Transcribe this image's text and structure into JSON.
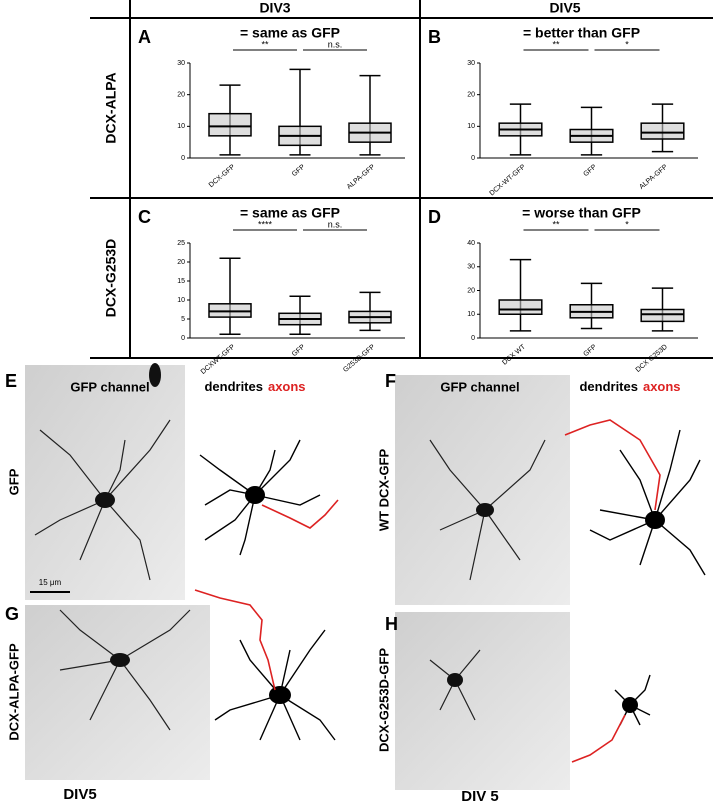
{
  "header": {
    "col1": "DIV3",
    "col2": "DIV5",
    "row1": "DCX-ALPA",
    "row2": "DCX-G253D"
  },
  "panels": [
    {
      "letter": "A",
      "title": "= same as GFP",
      "chart": {
        "type": "box",
        "categories": [
          "DCX-GFP",
          "GFP",
          "ALPA-GFP"
        ],
        "boxes": [
          {
            "min": 1,
            "q1": 7,
            "median": 10,
            "q3": 14,
            "max": 23
          },
          {
            "min": 1,
            "q1": 4,
            "median": 7,
            "q3": 10,
            "max": 28
          },
          {
            "min": 1,
            "q1": 5,
            "median": 8,
            "q3": 11,
            "max": 26
          }
        ],
        "significance": [
          "**",
          "n.s."
        ],
        "ylim": [
          0,
          30
        ],
        "yticks": [
          0,
          10,
          20,
          30
        ]
      }
    },
    {
      "letter": "B",
      "title": "= better than GFP",
      "chart": {
        "type": "box",
        "categories": [
          "DCX-WT-GFP",
          "GFP",
          "ALPA-GFP"
        ],
        "boxes": [
          {
            "min": 1,
            "q1": 7,
            "median": 9,
            "q3": 11,
            "max": 17
          },
          {
            "min": 1,
            "q1": 5,
            "median": 7,
            "q3": 9,
            "max": 16
          },
          {
            "min": 2,
            "q1": 6,
            "median": 8,
            "q3": 11,
            "max": 17
          }
        ],
        "significance": [
          "**",
          "*"
        ],
        "ylim": [
          0,
          30
        ],
        "yticks": [
          0,
          10,
          20,
          30
        ]
      }
    },
    {
      "letter": "C",
      "title": "= same as GFP",
      "chart": {
        "type": "box",
        "categories": [
          "DCXWT-GFP",
          "GFP",
          "G253D-GFP"
        ],
        "boxes": [
          {
            "min": 1,
            "q1": 5.5,
            "median": 7,
            "q3": 9,
            "max": 21
          },
          {
            "min": 1,
            "q1": 3.5,
            "median": 5,
            "q3": 6.5,
            "max": 11
          },
          {
            "min": 2,
            "q1": 4,
            "median": 5.5,
            "q3": 7,
            "max": 12
          }
        ],
        "significance": [
          "****",
          "n.s."
        ],
        "ylim": [
          0,
          25
        ],
        "yticks": [
          0,
          5,
          10,
          15,
          20,
          25
        ]
      }
    },
    {
      "letter": "D",
      "title": "= worse than GFP",
      "chart": {
        "type": "box",
        "categories": [
          "DCX WT",
          "GFP",
          "DCX G253D"
        ],
        "boxes": [
          {
            "min": 3,
            "q1": 10,
            "median": 12,
            "q3": 16,
            "max": 33
          },
          {
            "min": 4,
            "q1": 8.5,
            "median": 11,
            "q3": 14,
            "max": 23
          },
          {
            "min": 3,
            "q1": 7,
            "median": 10,
            "q3": 12,
            "max": 21
          }
        ],
        "significance": [
          "**",
          "*"
        ],
        "ylim": [
          0,
          40
        ],
        "yticks": [
          0,
          10,
          20,
          30,
          40
        ]
      }
    }
  ],
  "images": [
    {
      "letter": "E",
      "channel": "GFP channel",
      "dendrites": "dendrites",
      "axons": "axons",
      "row_label": "GFP",
      "scale_bar": "15 μm"
    },
    {
      "letter": "F",
      "channel": "GFP channel",
      "dendrites": "dendrites",
      "axons": "axons",
      "row_label": "WT DCX-GFP"
    },
    {
      "letter": "G",
      "row_label": "DCX-ALPA-GFP"
    },
    {
      "letter": "H",
      "row_label": "DCX-G253D-GFP"
    }
  ],
  "footer": {
    "left": "DIV5",
    "right": "DIV 5"
  }
}
